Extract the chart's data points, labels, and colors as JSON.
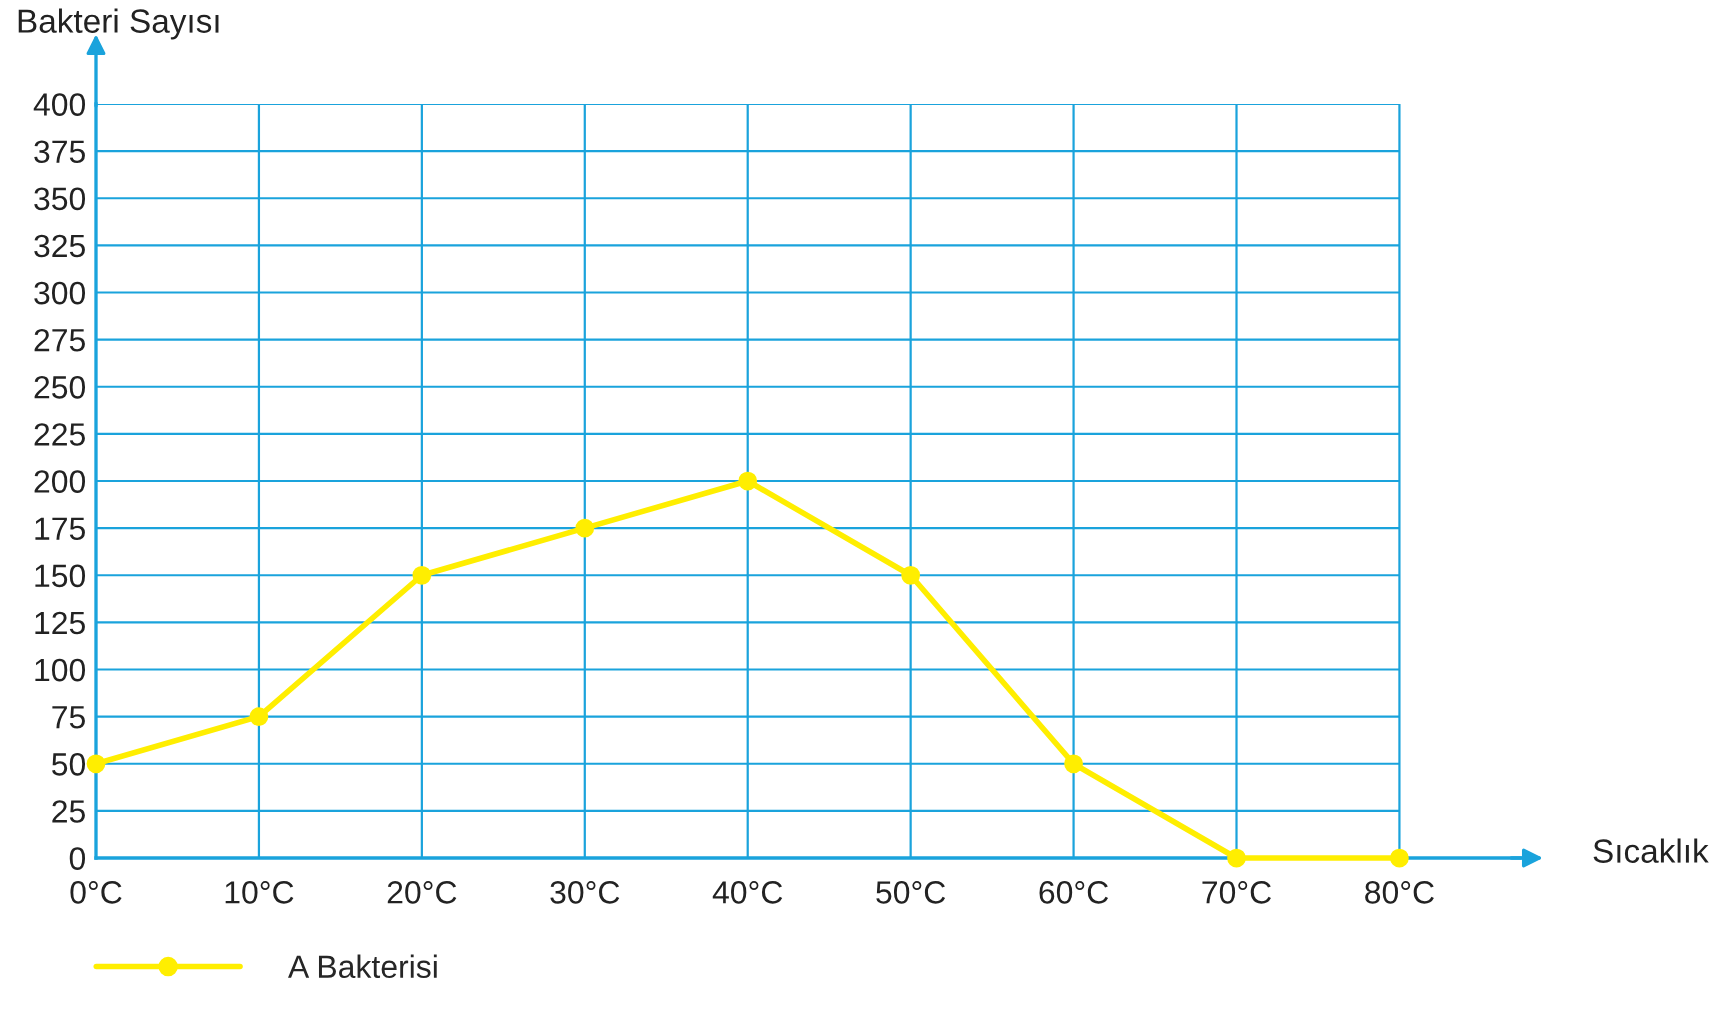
{
  "chart_data": {
    "type": "line",
    "xlabel": "Sıcaklık",
    "ylabel": "Bakteri Sayısı",
    "categories": [
      "0°C",
      "10°C",
      "20°C",
      "30°C",
      "40°C",
      "50°C",
      "60°C",
      "70°C",
      "80°C"
    ],
    "series": [
      {
        "name": "A Bakterisi",
        "color": "#ffee00",
        "values": [
          50,
          75,
          150,
          175,
          200,
          150,
          50,
          0,
          0
        ]
      }
    ],
    "ylim": [
      0,
      400
    ],
    "yticks": [
      0,
      25,
      50,
      75,
      100,
      125,
      150,
      175,
      200,
      225,
      250,
      275,
      300,
      325,
      350,
      375,
      400
    ],
    "grid": true,
    "legend": "bottom left",
    "marker": "circle",
    "line_style": "solid"
  }
}
